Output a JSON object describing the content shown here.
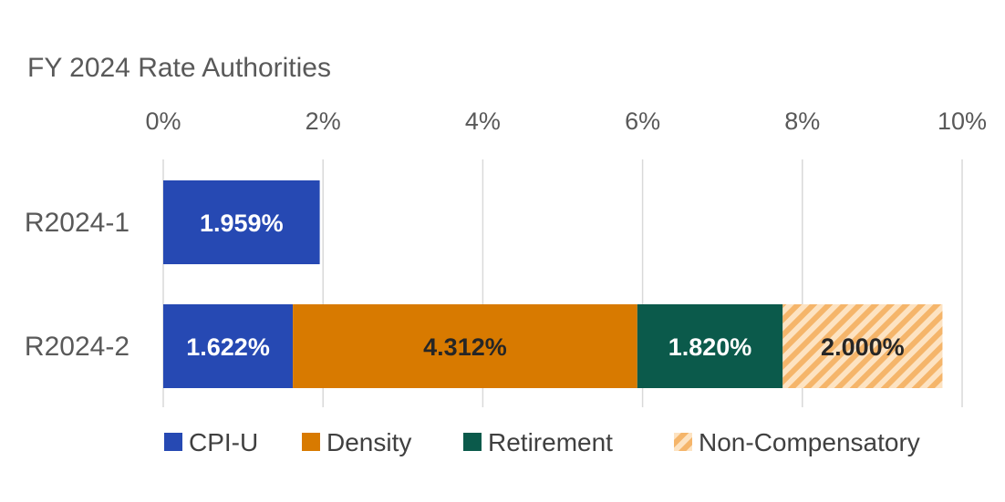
{
  "chart_data": {
    "type": "bar",
    "orientation": "horizontal",
    "stacked": true,
    "title": "FY 2024 Rate Authorities",
    "xlabel": "",
    "ylabel": "",
    "xlim": [
      0,
      10
    ],
    "x_ticks": [
      0,
      2,
      4,
      6,
      8,
      10
    ],
    "x_tick_labels": [
      "0%",
      "2%",
      "4%",
      "6%",
      "8%",
      "10%"
    ],
    "x_axis_position": "top",
    "grid": true,
    "legend_position": "bottom",
    "categories": [
      "R2024-1",
      "R2024-2"
    ],
    "series": [
      {
        "name": "CPI-U",
        "values": [
          1.959,
          1.622
        ],
        "labels": [
          "1.959%",
          "1.622%"
        ],
        "color": "#2649b3",
        "label_color": "#ffffff",
        "pattern": "solid"
      },
      {
        "name": "Density",
        "values": [
          0,
          4.312
        ],
        "labels": [
          "",
          "4.312%"
        ],
        "color": "#d87a00",
        "label_color": "#262626",
        "pattern": "solid"
      },
      {
        "name": "Retirement",
        "values": [
          0,
          1.82
        ],
        "labels": [
          "",
          "1.820%"
        ],
        "color": "#0b5a4b",
        "label_color": "#ffffff",
        "pattern": "solid"
      },
      {
        "name": "Non-Compensatory",
        "values": [
          0,
          2.0
        ],
        "labels": [
          "",
          "2.000%"
        ],
        "color": "#f5b56a",
        "label_color": "#262626",
        "pattern": "hatched"
      }
    ]
  }
}
